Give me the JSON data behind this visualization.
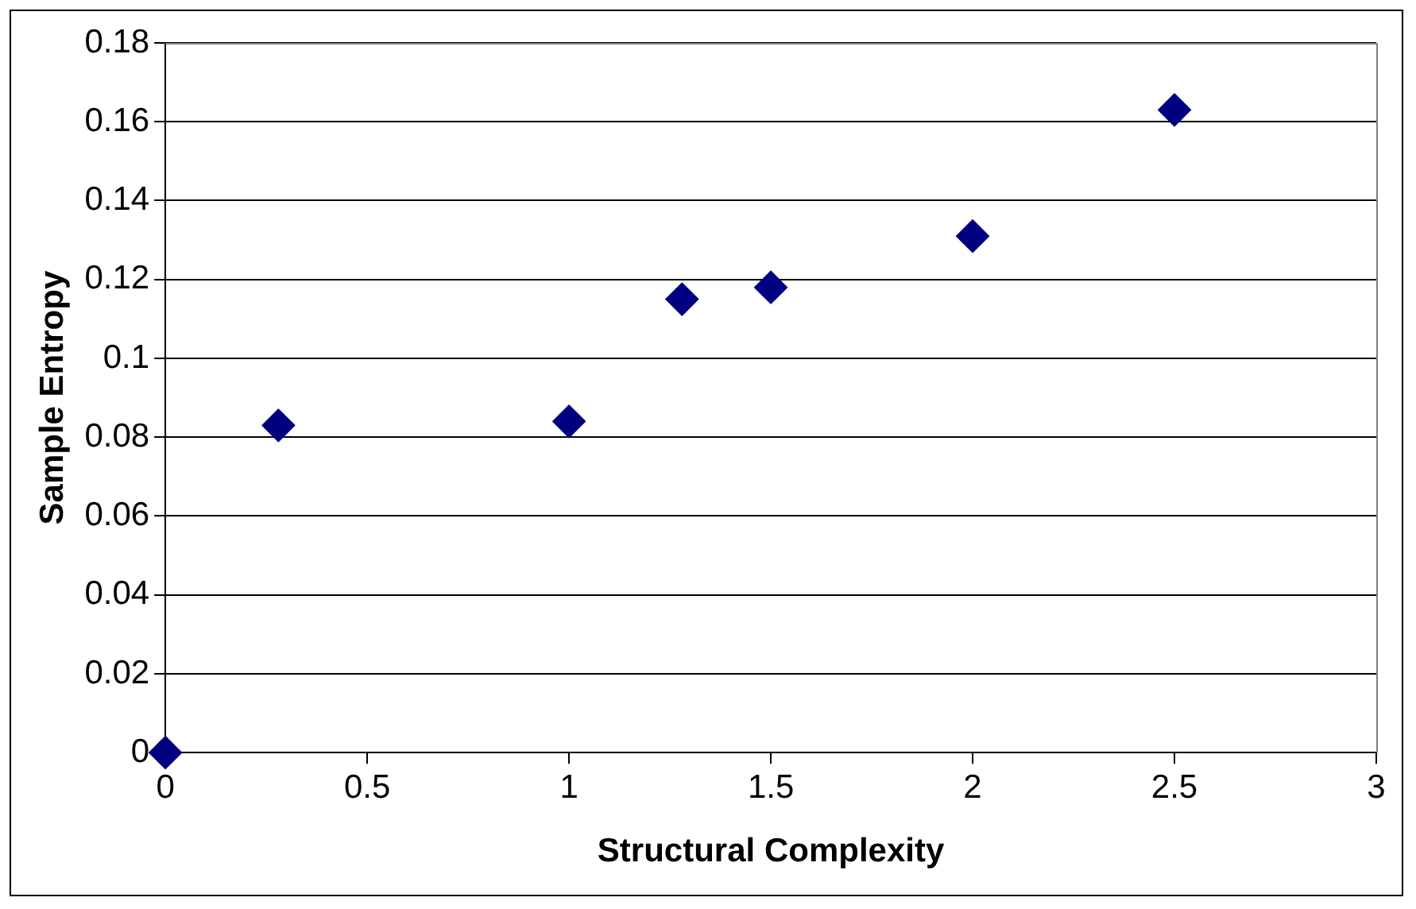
{
  "chart_data": {
    "type": "scatter",
    "xlabel": "Structural Complexity",
    "ylabel": "Sample Entropy",
    "x": [
      0,
      0.28,
      1,
      1.28,
      1.5,
      2,
      2.5
    ],
    "series": [
      {
        "color": "#000080",
        "values": [
          0,
          0.083,
          0.084,
          0.115,
          0.118,
          0.131,
          0.163
        ]
      }
    ],
    "xlim": [
      0,
      3
    ],
    "xticks": [
      0,
      0.5,
      1,
      1.5,
      2,
      2.5,
      3
    ],
    "ylim": [
      0,
      0.18
    ],
    "yticks": [
      0,
      0.02,
      0.04,
      0.06,
      0.08,
      0.1,
      0.12,
      0.14,
      0.16,
      0.18
    ],
    "grid": "y",
    "legend": false,
    "marker": "diamond"
  }
}
